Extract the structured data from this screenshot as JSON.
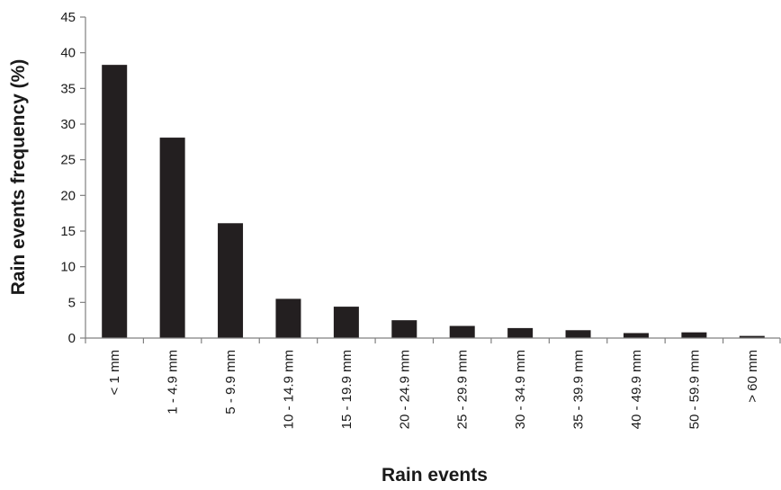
{
  "chart_data": {
    "type": "bar",
    "title": "",
    "xlabel": "Rain events",
    "ylabel": "Rain events frequency (%)",
    "ylim": [
      0,
      45
    ],
    "yticks": [
      0,
      5,
      10,
      15,
      20,
      25,
      30,
      35,
      40,
      45
    ],
    "grid": false,
    "categories": [
      "< 1 mm",
      "1 - 4.9 mm",
      "5 - 9.9 mm",
      "10 - 14.9 mm",
      "15 - 19.9 mm",
      "20 - 24.9 mm",
      "25 - 29.9 mm",
      "30 - 34.9 mm",
      "35 - 39.9 mm",
      "40 - 49.9 mm",
      "50 - 59.9 mm",
      "> 60 mm"
    ],
    "values": [
      38.3,
      28.1,
      16.1,
      5.5,
      4.4,
      2.5,
      1.7,
      1.4,
      1.1,
      0.7,
      0.8,
      0.3
    ],
    "bar_color": "#231f20",
    "axis_color": "#808080"
  }
}
